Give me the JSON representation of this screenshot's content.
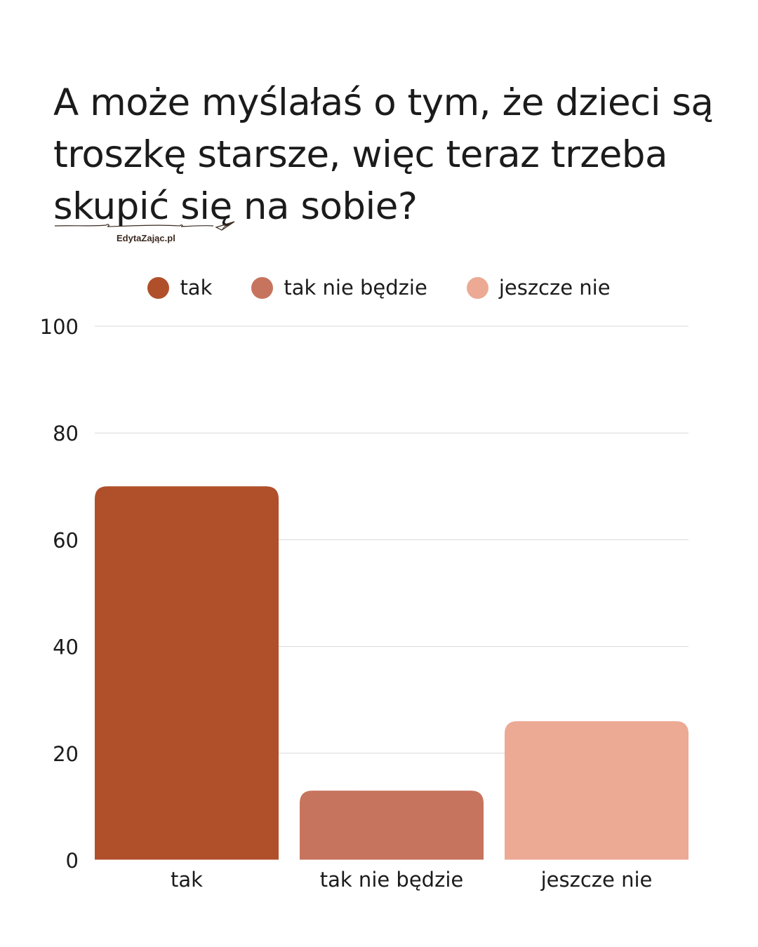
{
  "title": "A może myślałaś o tym, że dzieci są troszkę starsze, więc teraz trzeba skupić się na sobie?",
  "brand": "EdytaZając.pl",
  "legend": [
    {
      "label": "tak",
      "color": "#b0502b"
    },
    {
      "label": "tak nie będzie",
      "color": "#c7745e"
    },
    {
      "label": "jeszcze nie",
      "color": "#eca994"
    }
  ],
  "chart_data": {
    "type": "bar",
    "categories": [
      "tak",
      "tak nie będzie",
      "jeszcze nie"
    ],
    "values": [
      70,
      13,
      26
    ],
    "colors": [
      "#b0502b",
      "#c7745e",
      "#eca994"
    ],
    "ylim": [
      0,
      100
    ],
    "yticks": [
      "0",
      "20",
      "40",
      "60",
      "80",
      "100"
    ],
    "grid": true,
    "legend_position": "top-center"
  }
}
